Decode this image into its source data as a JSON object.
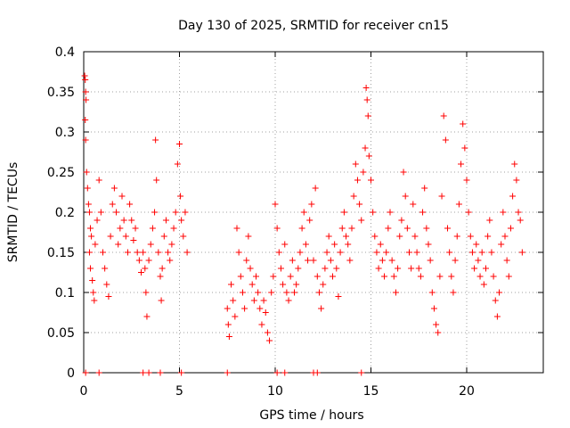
{
  "chart_data": {
    "type": "scatter",
    "title": "Day 130 of 2025, SRMTID for receiver cn15",
    "xlabel": "GPS time / hours",
    "ylabel": "SRMTID / TECUs",
    "xlim": [
      0,
      24
    ],
    "ylim": [
      0,
      0.4
    ],
    "xticks": [
      0,
      5,
      10,
      15,
      20
    ],
    "yticks": [
      0,
      0.05,
      0.1,
      0.15,
      0.2,
      0.25,
      0.3,
      0.35,
      0.4
    ],
    "xtick_labels": [
      "0",
      "5",
      "10",
      "15",
      "20"
    ],
    "ytick_labels": [
      "0",
      "0.05",
      "0.1",
      "0.15",
      "0.2",
      "0.25",
      "0.3",
      "0.35",
      "0.4"
    ],
    "grid": true,
    "marker": "+",
    "color": "#ff0000",
    "series": [
      {
        "name": "SRMTID",
        "points": [
          [
            0.05,
            0.37
          ],
          [
            0.08,
            0.365
          ],
          [
            0.1,
            0.35
          ],
          [
            0.12,
            0.34
          ],
          [
            0.08,
            0.315
          ],
          [
            0.1,
            0.29
          ],
          [
            0.15,
            0.25
          ],
          [
            0.2,
            0.23
          ],
          [
            0.25,
            0.21
          ],
          [
            0.3,
            0.2
          ],
          [
            0.35,
            0.18
          ],
          [
            0.4,
            0.17
          ],
          [
            0.3,
            0.15
          ],
          [
            0.35,
            0.13
          ],
          [
            0.45,
            0.115
          ],
          [
            0.5,
            0.1
          ],
          [
            0.55,
            0.09
          ],
          [
            0.6,
            0.16
          ],
          [
            0.7,
            0.19
          ],
          [
            0.8,
            0.24
          ],
          [
            0.9,
            0.2
          ],
          [
            1.0,
            0.15
          ],
          [
            1.1,
            0.13
          ],
          [
            1.2,
            0.11
          ],
          [
            1.3,
            0.095
          ],
          [
            1.4,
            0.17
          ],
          [
            1.5,
            0.21
          ],
          [
            1.6,
            0.23
          ],
          [
            1.7,
            0.2
          ],
          [
            1.8,
            0.16
          ],
          [
            1.9,
            0.18
          ],
          [
            2.0,
            0.22
          ],
          [
            2.1,
            0.19
          ],
          [
            2.2,
            0.17
          ],
          [
            2.3,
            0.15
          ],
          [
            2.4,
            0.21
          ],
          [
            2.5,
            0.19
          ],
          [
            2.6,
            0.165
          ],
          [
            2.7,
            0.18
          ],
          [
            2.8,
            0.15
          ],
          [
            2.9,
            0.14
          ],
          [
            3.0,
            0.125
          ],
          [
            3.1,
            0.15
          ],
          [
            3.2,
            0.13
          ],
          [
            3.25,
            0.1
          ],
          [
            3.3,
            0.07
          ],
          [
            3.4,
            0.14
          ],
          [
            3.5,
            0.16
          ],
          [
            3.6,
            0.18
          ],
          [
            3.7,
            0.2
          ],
          [
            3.75,
            0.29
          ],
          [
            3.8,
            0.24
          ],
          [
            3.9,
            0.15
          ],
          [
            4.0,
            0.12
          ],
          [
            4.05,
            0.09
          ],
          [
            4.1,
            0.13
          ],
          [
            4.2,
            0.17
          ],
          [
            4.3,
            0.19
          ],
          [
            4.4,
            0.15
          ],
          [
            4.5,
            0.14
          ],
          [
            4.6,
            0.16
          ],
          [
            4.7,
            0.18
          ],
          [
            4.8,
            0.2
          ],
          [
            4.9,
            0.26
          ],
          [
            5.0,
            0.285
          ],
          [
            5.05,
            0.22
          ],
          [
            5.1,
            0.19
          ],
          [
            5.2,
            0.17
          ],
          [
            5.3,
            0.2
          ],
          [
            5.4,
            0.15
          ],
          [
            7.5,
            0.08
          ],
          [
            7.55,
            0.06
          ],
          [
            7.6,
            0.045
          ],
          [
            7.7,
            0.11
          ],
          [
            7.8,
            0.09
          ],
          [
            7.9,
            0.07
          ],
          [
            8.0,
            0.18
          ],
          [
            8.1,
            0.15
          ],
          [
            8.2,
            0.12
          ],
          [
            8.3,
            0.1
          ],
          [
            8.4,
            0.08
          ],
          [
            8.5,
            0.14
          ],
          [
            8.6,
            0.17
          ],
          [
            8.7,
            0.13
          ],
          [
            8.8,
            0.11
          ],
          [
            8.9,
            0.09
          ],
          [
            9.0,
            0.12
          ],
          [
            9.1,
            0.1
          ],
          [
            9.2,
            0.08
          ],
          [
            9.3,
            0.06
          ],
          [
            9.4,
            0.09
          ],
          [
            9.5,
            0.075
          ],
          [
            9.6,
            0.05
          ],
          [
            9.7,
            0.04
          ],
          [
            9.8,
            0.1
          ],
          [
            9.9,
            0.12
          ],
          [
            10.0,
            0.21
          ],
          [
            10.1,
            0.18
          ],
          [
            10.2,
            0.15
          ],
          [
            10.3,
            0.13
          ],
          [
            10.4,
            0.11
          ],
          [
            10.5,
            0.16
          ],
          [
            10.6,
            0.1
          ],
          [
            10.7,
            0.09
          ],
          [
            10.8,
            0.12
          ],
          [
            10.9,
            0.14
          ],
          [
            11.0,
            0.1
          ],
          [
            11.1,
            0.11
          ],
          [
            11.2,
            0.13
          ],
          [
            11.3,
            0.15
          ],
          [
            11.4,
            0.18
          ],
          [
            11.5,
            0.2
          ],
          [
            11.6,
            0.16
          ],
          [
            11.7,
            0.14
          ],
          [
            11.8,
            0.19
          ],
          [
            11.9,
            0.21
          ],
          [
            12.0,
            0.14
          ],
          [
            12.1,
            0.23
          ],
          [
            12.2,
            0.12
          ],
          [
            12.3,
            0.1
          ],
          [
            12.4,
            0.08
          ],
          [
            12.5,
            0.11
          ],
          [
            12.6,
            0.13
          ],
          [
            12.7,
            0.15
          ],
          [
            12.8,
            0.17
          ],
          [
            12.9,
            0.14
          ],
          [
            13.0,
            0.12
          ],
          [
            13.1,
            0.16
          ],
          [
            13.2,
            0.13
          ],
          [
            13.3,
            0.095
          ],
          [
            13.4,
            0.15
          ],
          [
            13.5,
            0.18
          ],
          [
            13.6,
            0.2
          ],
          [
            13.7,
            0.17
          ],
          [
            13.8,
            0.16
          ],
          [
            13.9,
            0.14
          ],
          [
            14.0,
            0.18
          ],
          [
            14.1,
            0.22
          ],
          [
            14.2,
            0.26
          ],
          [
            14.3,
            0.24
          ],
          [
            14.4,
            0.21
          ],
          [
            14.5,
            0.19
          ],
          [
            14.6,
            0.25
          ],
          [
            14.7,
            0.28
          ],
          [
            14.75,
            0.355
          ],
          [
            14.8,
            0.34
          ],
          [
            14.85,
            0.32
          ],
          [
            14.9,
            0.27
          ],
          [
            15.0,
            0.24
          ],
          [
            15.1,
            0.2
          ],
          [
            15.2,
            0.17
          ],
          [
            15.3,
            0.15
          ],
          [
            15.4,
            0.13
          ],
          [
            15.5,
            0.16
          ],
          [
            15.6,
            0.14
          ],
          [
            15.7,
            0.12
          ],
          [
            15.8,
            0.15
          ],
          [
            15.9,
            0.18
          ],
          [
            16.0,
            0.2
          ],
          [
            16.1,
            0.14
          ],
          [
            16.2,
            0.12
          ],
          [
            16.3,
            0.1
          ],
          [
            16.4,
            0.13
          ],
          [
            16.5,
            0.17
          ],
          [
            16.6,
            0.19
          ],
          [
            16.7,
            0.25
          ],
          [
            16.8,
            0.22
          ],
          [
            16.9,
            0.18
          ],
          [
            17.0,
            0.15
          ],
          [
            17.1,
            0.13
          ],
          [
            17.2,
            0.21
          ],
          [
            17.3,
            0.17
          ],
          [
            17.4,
            0.15
          ],
          [
            17.5,
            0.13
          ],
          [
            17.6,
            0.12
          ],
          [
            17.7,
            0.2
          ],
          [
            17.8,
            0.23
          ],
          [
            17.9,
            0.18
          ],
          [
            18.0,
            0.16
          ],
          [
            18.1,
            0.14
          ],
          [
            18.2,
            0.1
          ],
          [
            18.3,
            0.08
          ],
          [
            18.4,
            0.06
          ],
          [
            18.5,
            0.05
          ],
          [
            18.6,
            0.12
          ],
          [
            18.7,
            0.22
          ],
          [
            18.8,
            0.32
          ],
          [
            18.9,
            0.29
          ],
          [
            19.0,
            0.18
          ],
          [
            19.1,
            0.15
          ],
          [
            19.2,
            0.12
          ],
          [
            19.3,
            0.1
          ],
          [
            19.4,
            0.14
          ],
          [
            19.5,
            0.17
          ],
          [
            19.6,
            0.21
          ],
          [
            19.7,
            0.26
          ],
          [
            19.8,
            0.31
          ],
          [
            19.9,
            0.28
          ],
          [
            20.0,
            0.24
          ],
          [
            20.1,
            0.2
          ],
          [
            20.2,
            0.17
          ],
          [
            20.3,
            0.15
          ],
          [
            20.4,
            0.13
          ],
          [
            20.5,
            0.16
          ],
          [
            20.6,
            0.14
          ],
          [
            20.7,
            0.12
          ],
          [
            20.8,
            0.15
          ],
          [
            20.9,
            0.11
          ],
          [
            21.0,
            0.13
          ],
          [
            21.1,
            0.17
          ],
          [
            21.2,
            0.19
          ],
          [
            21.3,
            0.15
          ],
          [
            21.4,
            0.12
          ],
          [
            21.5,
            0.09
          ],
          [
            21.6,
            0.07
          ],
          [
            21.7,
            0.1
          ],
          [
            21.8,
            0.16
          ],
          [
            21.9,
            0.2
          ],
          [
            22.0,
            0.17
          ],
          [
            22.1,
            0.14
          ],
          [
            22.2,
            0.12
          ],
          [
            22.3,
            0.18
          ],
          [
            22.4,
            0.22
          ],
          [
            22.5,
            0.26
          ],
          [
            22.6,
            0.24
          ],
          [
            22.7,
            0.2
          ],
          [
            22.8,
            0.19
          ],
          [
            22.9,
            0.15
          ],
          [
            0.1,
            0.0
          ],
          [
            0.8,
            0.0
          ],
          [
            3.1,
            0.0
          ],
          [
            3.4,
            0.0
          ],
          [
            4.0,
            0.0
          ],
          [
            5.1,
            0.0
          ],
          [
            7.5,
            0.0
          ],
          [
            10.1,
            0.0
          ],
          [
            10.5,
            0.0
          ],
          [
            12.0,
            0.0
          ],
          [
            12.2,
            0.0
          ],
          [
            14.5,
            0.0
          ]
        ]
      }
    ]
  }
}
